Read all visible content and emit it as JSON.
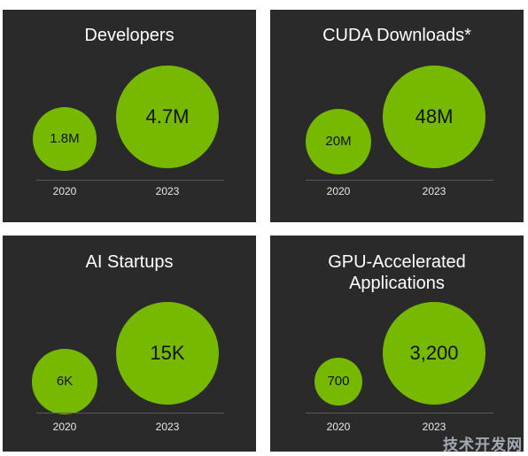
{
  "chart_data": [
    {
      "type": "bubble",
      "title": [
        "Developers"
      ],
      "categories": [
        "2020",
        "2023"
      ],
      "values": [
        1.8,
        4.7
      ],
      "value_labels": [
        "1.8M",
        "4.7M"
      ],
      "unit": "M"
    },
    {
      "type": "bubble",
      "title": [
        "CUDA Downloads*"
      ],
      "categories": [
        "2020",
        "2023"
      ],
      "values": [
        20,
        48
      ],
      "value_labels": [
        "20M",
        "48M"
      ],
      "unit": "M"
    },
    {
      "type": "bubble",
      "title": [
        "AI Startups"
      ],
      "categories": [
        "2020",
        "2023"
      ],
      "values": [
        6,
        15
      ],
      "value_labels": [
        "6K",
        "15K"
      ],
      "unit": "K"
    },
    {
      "type": "bubble",
      "title": [
        "GPU-Accelerated",
        "Applications"
      ],
      "categories": [
        "2020",
        "2023"
      ],
      "values": [
        700,
        3200
      ],
      "value_labels": [
        "700",
        "3,200"
      ],
      "unit": ""
    }
  ],
  "colors": {
    "panel_bg": "#2a2a2a",
    "bubble": "#76b900",
    "title_text": "#ffffff",
    "page_bg": "#ffffff"
  },
  "watermark": "技术开发网"
}
